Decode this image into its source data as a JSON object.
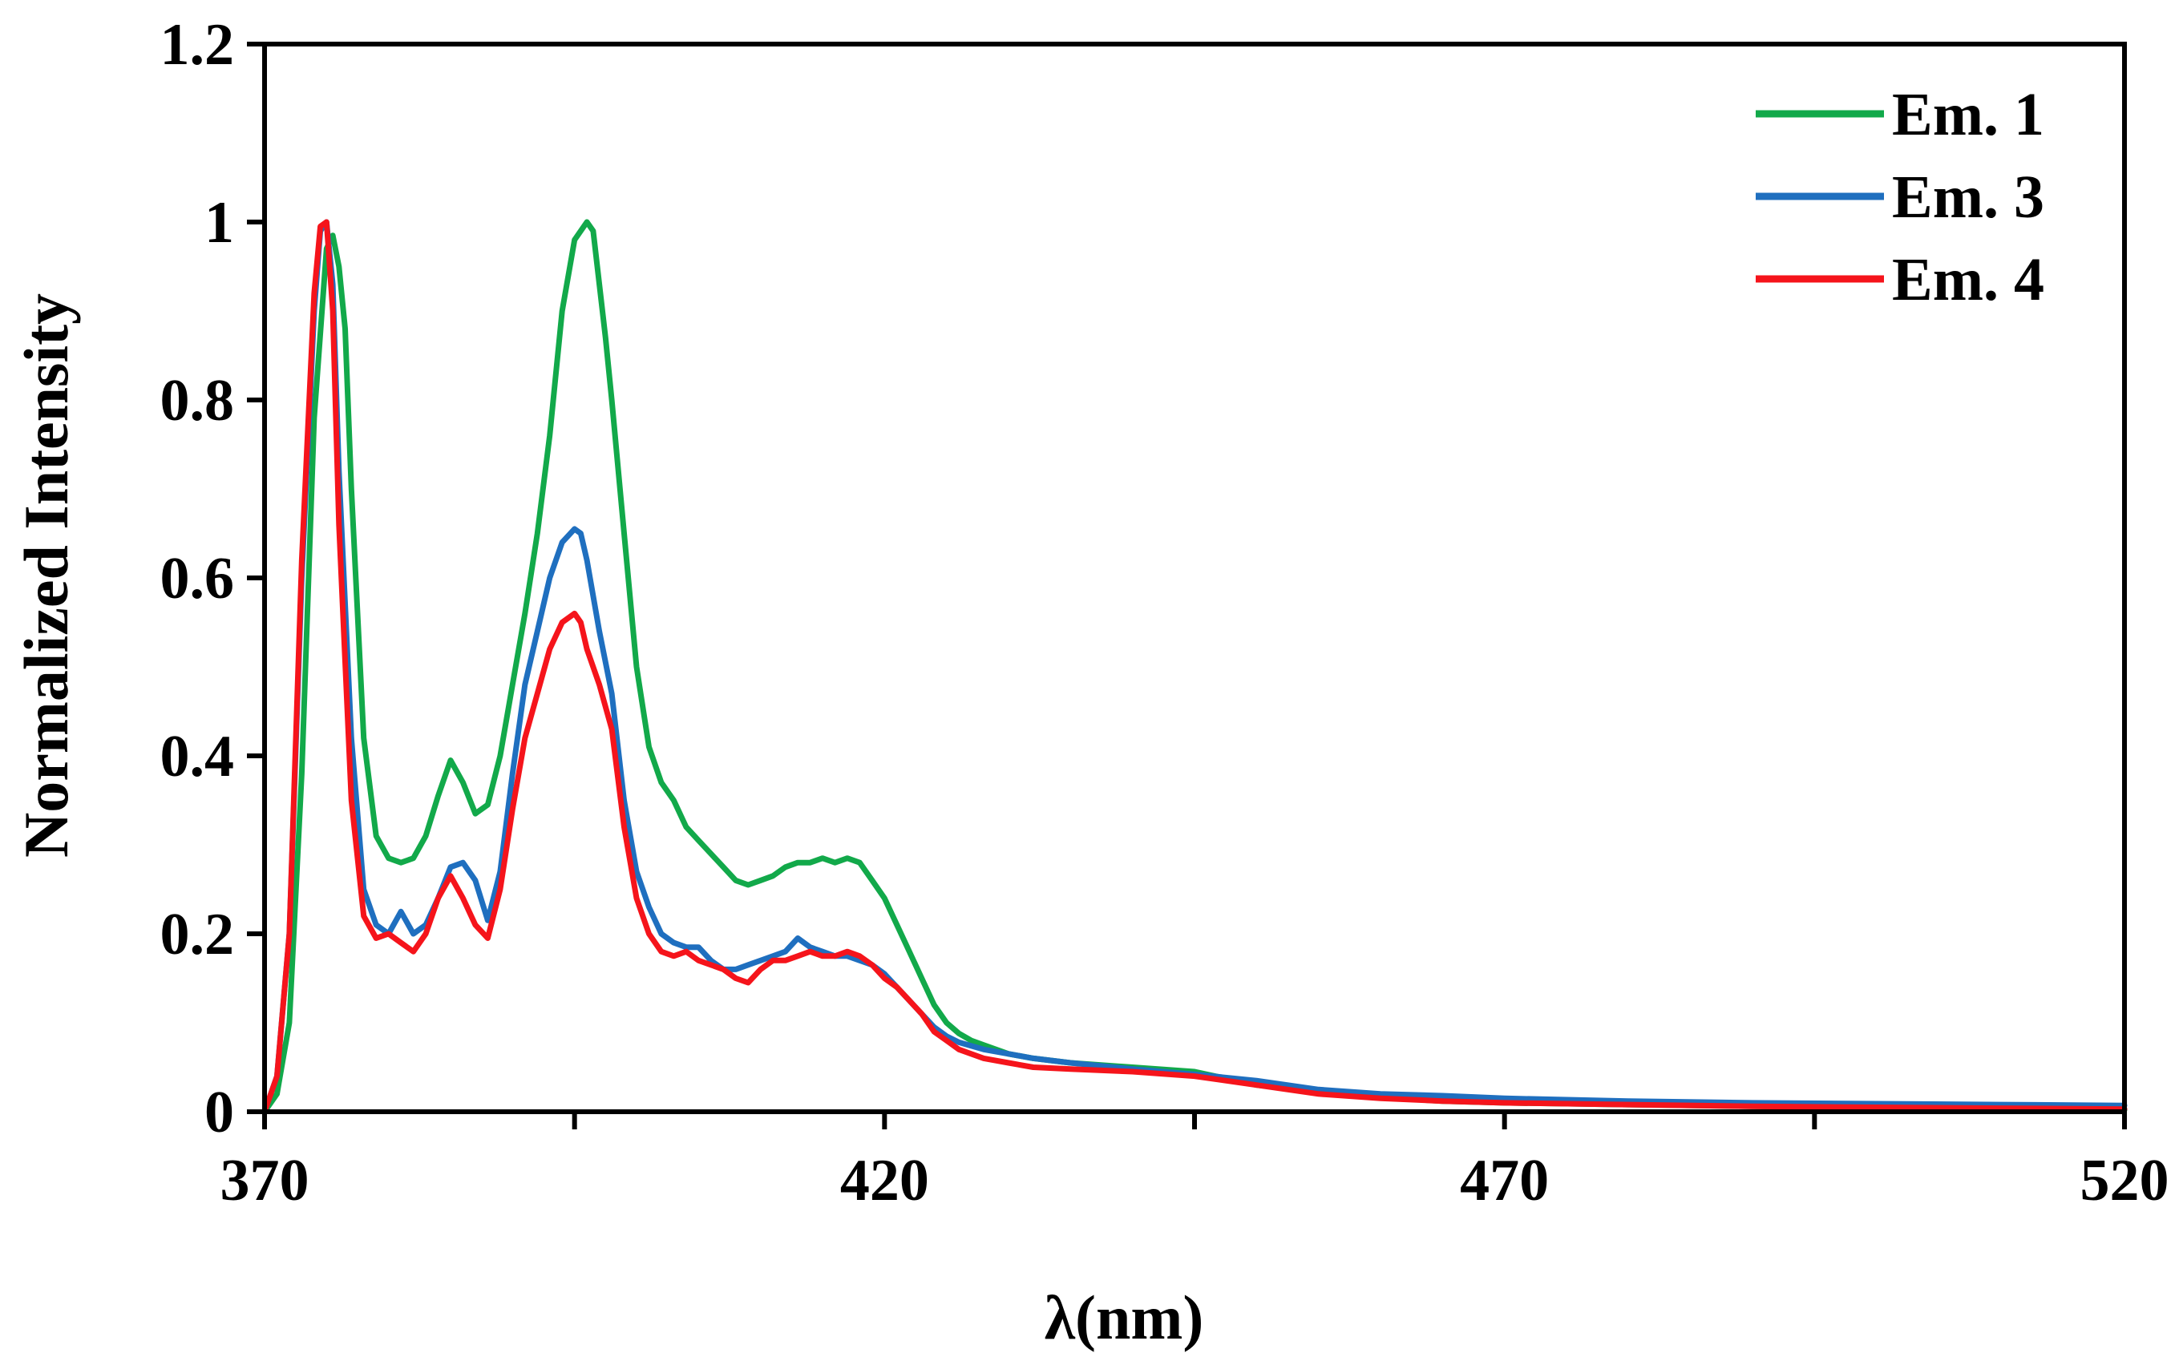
{
  "chart_data": {
    "type": "line",
    "xlabel": "λ(nm)",
    "ylabel": "Normalized Intensity",
    "xlim": [
      370,
      520
    ],
    "ylim": [
      0,
      1.2
    ],
    "x_tick_values": [
      370,
      395,
      420,
      445,
      470,
      495,
      520
    ],
    "x_tick_labels": [
      "370",
      "",
      "420",
      "",
      "470",
      "",
      "520"
    ],
    "y_tick_values": [
      0,
      0.2,
      0.4,
      0.6,
      0.8,
      1.0,
      1.2
    ],
    "y_tick_labels": [
      "0",
      "0.2",
      "0.4",
      "0.6",
      "0.8",
      "1",
      "1.2"
    ],
    "grid": false,
    "legend_position": "top-right",
    "series": [
      {
        "name": "Em. 1",
        "color": "#12a94a",
        "x": [
          370,
          371,
          372,
          373,
          374,
          375,
          375.5,
          376,
          376.5,
          377,
          378,
          379,
          380,
          381,
          382,
          383,
          384,
          385,
          386,
          387,
          388,
          389,
          390,
          391,
          392,
          393,
          394,
          395,
          396,
          396.5,
          397,
          397.5,
          398,
          399,
          400,
          401,
          402,
          403,
          404,
          405,
          406,
          407,
          408,
          409,
          410,
          411,
          412,
          413,
          414,
          415,
          416,
          417,
          418,
          419,
          420,
          421,
          422,
          423,
          424,
          425,
          426,
          427,
          428,
          430,
          432,
          435,
          440,
          445,
          450,
          455,
          460,
          465,
          470,
          480,
          490,
          500,
          510,
          520
        ],
        "y": [
          0,
          0.02,
          0.1,
          0.38,
          0.78,
          0.97,
          0.985,
          0.95,
          0.88,
          0.7,
          0.42,
          0.31,
          0.285,
          0.28,
          0.285,
          0.31,
          0.355,
          0.395,
          0.37,
          0.335,
          0.345,
          0.4,
          0.48,
          0.56,
          0.65,
          0.76,
          0.9,
          0.98,
          1.0,
          0.99,
          0.93,
          0.87,
          0.8,
          0.65,
          0.5,
          0.41,
          0.37,
          0.35,
          0.32,
          0.305,
          0.29,
          0.275,
          0.26,
          0.255,
          0.26,
          0.265,
          0.275,
          0.28,
          0.28,
          0.285,
          0.28,
          0.285,
          0.28,
          0.26,
          0.24,
          0.21,
          0.18,
          0.15,
          0.12,
          0.1,
          0.088,
          0.08,
          0.075,
          0.065,
          0.06,
          0.055,
          0.05,
          0.045,
          0.03,
          0.022,
          0.016,
          0.012,
          0.01,
          0.008,
          0.006,
          0.004,
          0.003,
          0.002
        ]
      },
      {
        "name": "Em. 3",
        "color": "#1f6fbf",
        "x": [
          370,
          371,
          372,
          373,
          374,
          374.5,
          375,
          375.5,
          376,
          377,
          378,
          379,
          380,
          381,
          382,
          383,
          384,
          385,
          386,
          387,
          388,
          389,
          390,
          391,
          392,
          393,
          394,
          395,
          395.5,
          396,
          397,
          398,
          399,
          400,
          401,
          402,
          403,
          404,
          405,
          406,
          407,
          408,
          409,
          410,
          411,
          412,
          413,
          414,
          415,
          416,
          417,
          418,
          419,
          420,
          421,
          422,
          423,
          424,
          425,
          426,
          428,
          430,
          432,
          435,
          440,
          445,
          450,
          455,
          460,
          465,
          470,
          480,
          490,
          500,
          510,
          520
        ],
        "y": [
          0,
          0.04,
          0.2,
          0.6,
          0.9,
          0.99,
          1.0,
          0.93,
          0.72,
          0.42,
          0.25,
          0.21,
          0.2,
          0.225,
          0.2,
          0.21,
          0.24,
          0.275,
          0.28,
          0.26,
          0.215,
          0.27,
          0.38,
          0.48,
          0.54,
          0.6,
          0.64,
          0.655,
          0.65,
          0.62,
          0.54,
          0.47,
          0.35,
          0.27,
          0.23,
          0.2,
          0.19,
          0.185,
          0.185,
          0.17,
          0.16,
          0.16,
          0.165,
          0.17,
          0.175,
          0.18,
          0.195,
          0.185,
          0.18,
          0.175,
          0.175,
          0.17,
          0.165,
          0.155,
          0.14,
          0.125,
          0.11,
          0.095,
          0.085,
          0.078,
          0.07,
          0.065,
          0.06,
          0.055,
          0.048,
          0.042,
          0.035,
          0.025,
          0.02,
          0.018,
          0.015,
          0.012,
          0.01,
          0.009,
          0.008,
          0.007
        ]
      },
      {
        "name": "Em. 4",
        "color": "#f5141b",
        "x": [
          370,
          371,
          372,
          373,
          374,
          374.5,
          375,
          375.5,
          376,
          377,
          378,
          379,
          380,
          381,
          382,
          383,
          384,
          385,
          386,
          387,
          388,
          389,
          390,
          391,
          392,
          393,
          394,
          395,
          395.5,
          396,
          397,
          398,
          399,
          400,
          401,
          402,
          403,
          404,
          405,
          406,
          407,
          408,
          409,
          410,
          411,
          412,
          413,
          414,
          415,
          416,
          417,
          418,
          419,
          420,
          421,
          422,
          423,
          424,
          425,
          426,
          428,
          430,
          432,
          435,
          440,
          445,
          450,
          455,
          460,
          465,
          470,
          480,
          490,
          500,
          510,
          520
        ],
        "y": [
          0,
          0.04,
          0.2,
          0.62,
          0.92,
          0.995,
          1.0,
          0.9,
          0.66,
          0.35,
          0.22,
          0.195,
          0.2,
          0.19,
          0.18,
          0.2,
          0.24,
          0.265,
          0.24,
          0.21,
          0.195,
          0.25,
          0.34,
          0.42,
          0.47,
          0.52,
          0.55,
          0.56,
          0.55,
          0.52,
          0.48,
          0.43,
          0.32,
          0.24,
          0.2,
          0.18,
          0.175,
          0.18,
          0.17,
          0.165,
          0.16,
          0.15,
          0.145,
          0.16,
          0.17,
          0.17,
          0.175,
          0.18,
          0.175,
          0.175,
          0.18,
          0.175,
          0.165,
          0.15,
          0.14,
          0.125,
          0.11,
          0.09,
          0.08,
          0.07,
          0.06,
          0.055,
          0.05,
          0.048,
          0.045,
          0.04,
          0.03,
          0.02,
          0.015,
          0.012,
          0.01,
          0.008,
          0.006,
          0.005,
          0.004,
          0.003
        ]
      }
    ]
  }
}
